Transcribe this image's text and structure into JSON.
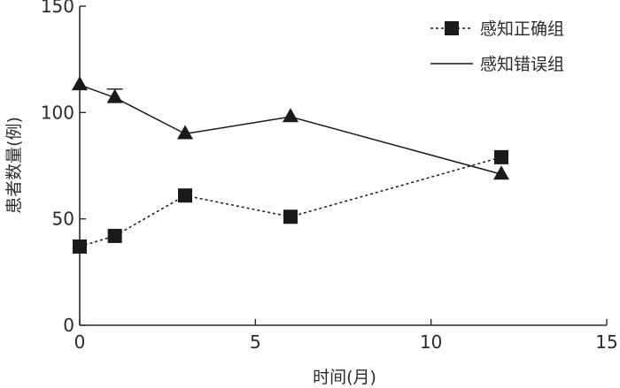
{
  "chart_data": {
    "type": "line",
    "title": "",
    "xlabel": "时间(月)",
    "ylabel": "患者数量(例)",
    "xlim": [
      0,
      15
    ],
    "ylim": [
      0,
      150
    ],
    "xticks": [
      0,
      5,
      10,
      15
    ],
    "yticks": [
      0,
      50,
      100,
      150
    ],
    "grid": false,
    "legend_position": "top-right",
    "series": [
      {
        "name": "感知正确组",
        "marker": "square",
        "line_style": "dotted",
        "color": "#1a1a1a",
        "x": [
          0,
          1,
          3,
          6,
          12
        ],
        "y": [
          37,
          42,
          61,
          51,
          79
        ]
      },
      {
        "name": "感知错误组",
        "marker": "triangle",
        "line_style": "solid",
        "color": "#1a1a1a",
        "x": [
          0,
          1,
          3,
          6,
          12
        ],
        "y": [
          113,
          107,
          90,
          98,
          71
        ],
        "error_bars": [
          {
            "x": 1,
            "upper": 111
          }
        ]
      }
    ]
  }
}
